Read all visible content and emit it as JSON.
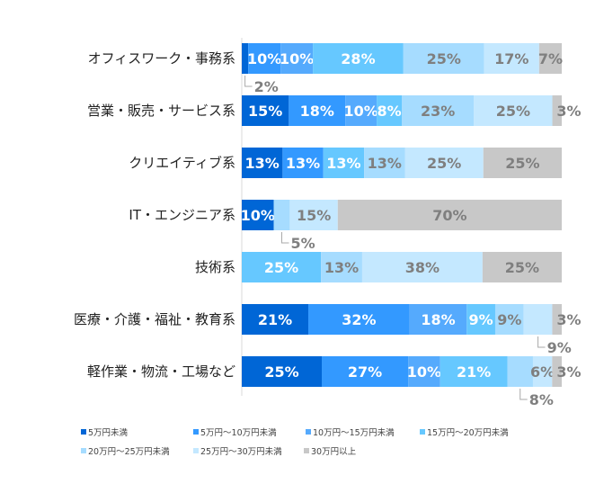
{
  "chart_data": {
    "type": "bar",
    "orientation": "horizontal",
    "stacked": true,
    "xlim": [
      0,
      100
    ],
    "unit": "%",
    "grid": false,
    "legend": "bottom",
    "categories": [
      "オフィスワーク・事務系",
      "営業・販売・サービス系",
      "クリエイティブ系",
      "IT・エンジニア系",
      "技術系",
      "医療・介護・福祉・教育系",
      "軽作業・物流・工場など"
    ],
    "series": [
      {
        "name": "5万円未満",
        "color": "#0066d6",
        "values": [
          2,
          15,
          13,
          10,
          0,
          21,
          25
        ]
      },
      {
        "name": "5万円～10万円未満",
        "color": "#3399ff",
        "values": [
          10,
          18,
          13,
          0,
          0,
          32,
          27
        ]
      },
      {
        "name": "10万円～15万円未満",
        "color": "#55aafd",
        "values": [
          10,
          10,
          0,
          0,
          0,
          18,
          10
        ]
      },
      {
        "name": "15万円～20万円未満",
        "color": "#66c8ff",
        "values": [
          28,
          8,
          13,
          0,
          25,
          9,
          21
        ]
      },
      {
        "name": "20万円～25万円未満",
        "color": "#a6dcff",
        "values": [
          25,
          23,
          13,
          5,
          13,
          9,
          8
        ]
      },
      {
        "name": "25万円～30万円未満",
        "color": "#c4e8ff",
        "values": [
          17,
          25,
          25,
          15,
          38,
          9,
          6
        ]
      },
      {
        "name": "30万円以上",
        "color": "#c8c8c8",
        "values": [
          7,
          3,
          25,
          70,
          25,
          3,
          3
        ]
      }
    ]
  }
}
